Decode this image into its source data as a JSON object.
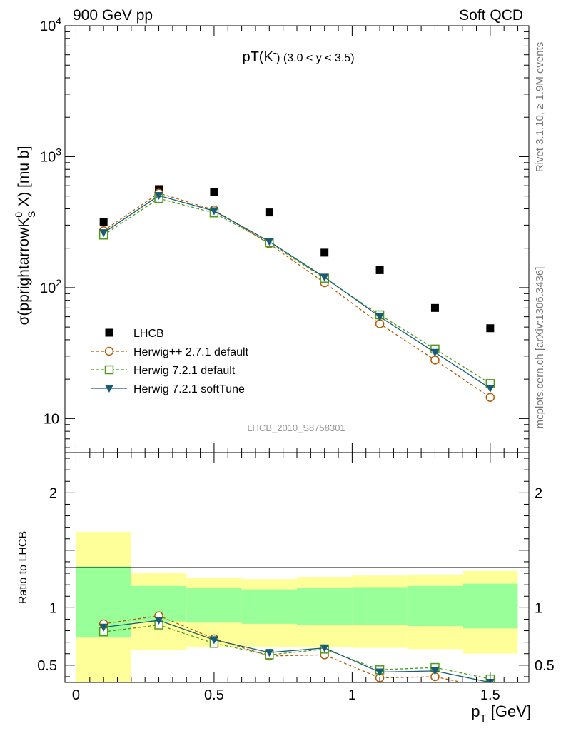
{
  "header": {
    "left": "900 GeV pp",
    "right": "Soft QCD"
  },
  "side_labels": {
    "rivet": "Rivet 3.1.10, ≥ 1.9M events",
    "mcplots": "mcplots.cern.ch [arXiv:1306.3436]"
  },
  "chart_data": [
    {
      "type": "scatter",
      "panel": "main",
      "title_main": "pT(K",
      "title_sup": "-",
      "title_tail": ") (3.0 < y < 3.5)",
      "ylabel_main": "σ(pprightarrowK",
      "ylabel_sup": "0",
      "ylabel_sub": "S",
      "ylabel_tail": " X) [mu b]",
      "watermark": "LHCB_2010_S8758301",
      "yscale": "log",
      "ylim": [
        5.5,
        10000
      ],
      "xlim": [
        -0.04,
        1.64
      ],
      "y_ticks": [
        {
          "value": 10,
          "label": "10",
          "exp": ""
        },
        {
          "value": 100,
          "label": "10",
          "exp": "2"
        },
        {
          "value": 1000,
          "label": "10",
          "exp": "3"
        },
        {
          "value": 10000,
          "label": "10",
          "exp": "4"
        }
      ],
      "legend_position": "center-left",
      "series": [
        {
          "name": "LHCB",
          "marker": "square-filled",
          "color": "#000000",
          "line": "none",
          "x": [
            0.1,
            0.3,
            0.5,
            0.7,
            0.9,
            1.1,
            1.3,
            1.5
          ],
          "y": [
            318,
            565,
            540,
            375,
            185,
            136,
            70,
            49
          ]
        },
        {
          "name": "Herwig++ 2.7.1 default",
          "marker": "circle-open",
          "color": "#b35900",
          "line": "dashed",
          "x": [
            0.1,
            0.3,
            0.5,
            0.7,
            0.9,
            1.1,
            1.3,
            1.5
          ],
          "y": [
            272,
            526,
            392,
            216,
            109,
            53,
            28,
            14.5
          ]
        },
        {
          "name": "Herwig 7.2.1 default",
          "marker": "square-open",
          "color": "#4d9c1a",
          "line": "dashed",
          "x": [
            0.1,
            0.3,
            0.5,
            0.7,
            0.9,
            1.1,
            1.3,
            1.5
          ],
          "y": [
            252,
            479,
            372,
            220,
            118,
            62,
            34,
            18.5
          ]
        },
        {
          "name": "Herwig 7.2.1 softTune",
          "marker": "triangle-down",
          "color": "#1a5c73",
          "line": "solid",
          "x": [
            0.1,
            0.3,
            0.5,
            0.7,
            0.9,
            1.1,
            1.3,
            1.5
          ],
          "y": [
            262,
            504,
            385,
            225,
            120,
            60,
            32,
            17
          ]
        }
      ]
    },
    {
      "type": "scatter",
      "panel": "ratio",
      "ylabel": "Ratio to LHCB",
      "xlabel_main": "p",
      "xlabel_sub": "T",
      "xlabel_tail": " [GeV]",
      "ylim": [
        0.35,
        2.35
      ],
      "xlim": [
        -0.04,
        1.64
      ],
      "x_ticks": [
        {
          "value": 0,
          "label": "0"
        },
        {
          "value": 0.5,
          "label": "0.5"
        },
        {
          "value": 1,
          "label": "1"
        },
        {
          "value": 1.5,
          "label": "1.5"
        }
      ],
      "y_ticks": [
        {
          "value": 0.5,
          "label": "0.5"
        },
        {
          "value": 1,
          "label": "1"
        },
        {
          "value": 2,
          "label": "2"
        }
      ],
      "bands": {
        "x_edges": [
          0.0,
          0.2,
          0.4,
          0.6,
          0.8,
          1.0,
          1.2,
          1.4,
          1.6
        ],
        "yellow_low": [
          0.0,
          0.63,
          0.66,
          0.66,
          0.66,
          0.65,
          0.64,
          0.6
        ],
        "yellow_high": [
          1.66,
          1.3,
          1.26,
          1.25,
          1.27,
          1.28,
          1.29,
          1.32
        ],
        "green_low": [
          0.74,
          0.88,
          0.87,
          0.86,
          0.85,
          0.85,
          0.84,
          0.82
        ],
        "green_high": [
          1.36,
          1.19,
          1.17,
          1.16,
          1.17,
          1.18,
          1.19,
          1.21
        ],
        "yellow_color": "#ffff99",
        "green_color": "#99ff99"
      },
      "series": [
        {
          "name": "Herwig++ 2.7.1 default",
          "marker": "circle-open",
          "color": "#b35900",
          "line": "dashed",
          "x": [
            0.1,
            0.3,
            0.5,
            0.7,
            0.9,
            1.1,
            1.3,
            1.5
          ],
          "y": [
            0.86,
            0.93,
            0.73,
            0.58,
            0.59,
            0.39,
            0.4,
            0.3
          ]
        },
        {
          "name": "Herwig 7.2.1 default",
          "marker": "square-open",
          "color": "#4d9c1a",
          "line": "dashed",
          "x": [
            0.1,
            0.3,
            0.5,
            0.7,
            0.9,
            1.1,
            1.3,
            1.5
          ],
          "y": [
            0.79,
            0.85,
            0.69,
            0.59,
            0.64,
            0.46,
            0.48,
            0.38
          ]
        },
        {
          "name": "Herwig 7.2.1 softTune",
          "marker": "triangle-down",
          "color": "#1a5c73",
          "line": "solid",
          "x": [
            0.1,
            0.3,
            0.5,
            0.7,
            0.9,
            1.1,
            1.3,
            1.5
          ],
          "y": [
            0.83,
            0.89,
            0.72,
            0.61,
            0.65,
            0.44,
            0.45,
            0.35
          ]
        }
      ]
    }
  ]
}
